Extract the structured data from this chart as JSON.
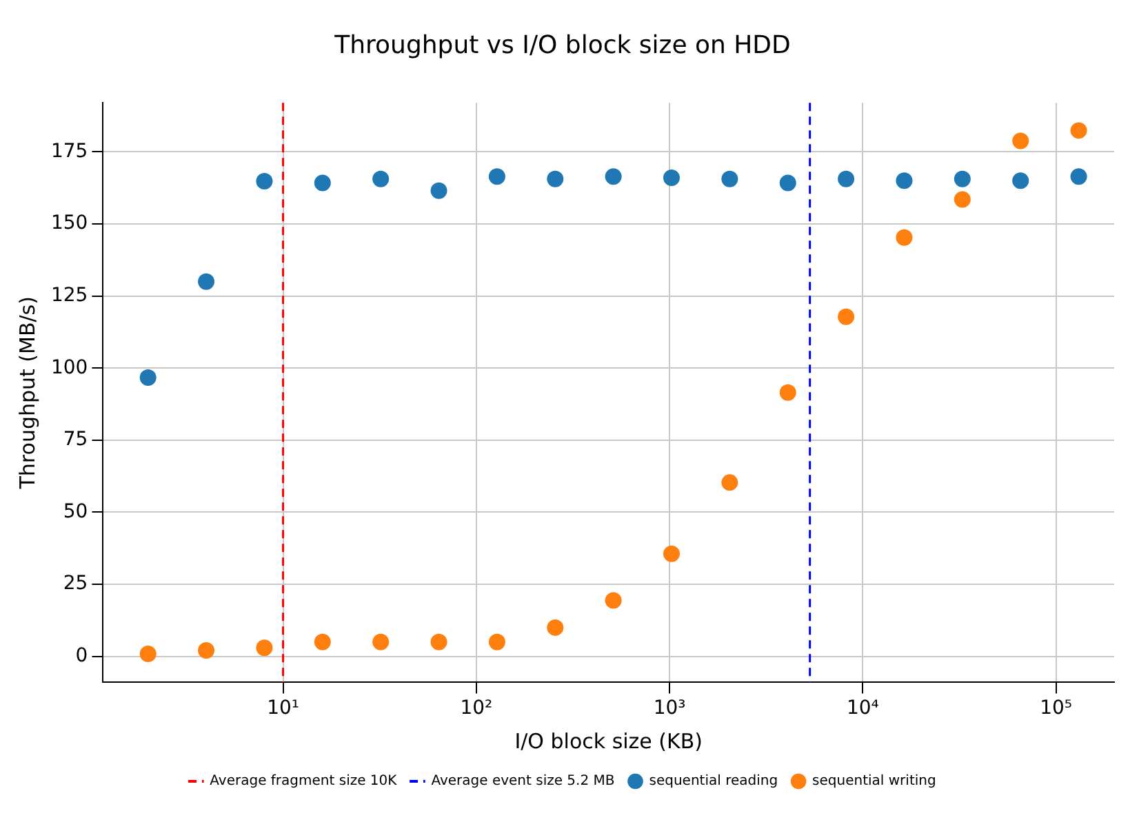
{
  "chart_data": {
    "type": "scatter",
    "title": "Throughput vs I/O block size on HDD",
    "xlabel": "I/O block size (KB)",
    "ylabel": "Throughput (MB/s)",
    "x": [
      2,
      4,
      8,
      16,
      32,
      64,
      128,
      256,
      512,
      1024,
      2048,
      4096,
      8192,
      16384,
      32768,
      65536,
      131072
    ],
    "series": [
      {
        "name": "sequential reading",
        "color": "#1f77b4",
        "values": [
          96.7,
          130,
          164.8,
          164.2,
          165.6,
          161.5,
          166.4,
          165.6,
          166.4,
          166,
          165.6,
          164.2,
          165.6,
          165,
          165.6,
          165,
          166.4
        ]
      },
      {
        "name": "sequential writing",
        "color": "#ff7f0e",
        "values": [
          0.9,
          2.1,
          3,
          5,
          5,
          5,
          5,
          10,
          19.4,
          35.6,
          60.3,
          91.5,
          117.8,
          145.3,
          158.5,
          178.8,
          182.4
        ]
      }
    ],
    "ref_lines": [
      {
        "axis": "x",
        "value": 10,
        "label": "Average fragment size 10K",
        "color": "#ff0000",
        "line_style": "dashed"
      },
      {
        "axis": "x",
        "value": 5325,
        "label": "Average event size 5.2 MB",
        "color": "#0000ff",
        "line_style": "dashed"
      }
    ],
    "log": "x",
    "xlim": [
      1.17,
      200000
    ],
    "xticks": [
      {
        "value": 10,
        "label": "10¹"
      },
      {
        "value": 100,
        "label": "10²"
      },
      {
        "value": 1000,
        "label": "10³"
      },
      {
        "value": 10000,
        "label": "10⁴"
      },
      {
        "value": 100000,
        "label": "10⁵"
      }
    ],
    "ylim": [
      -9,
      192
    ],
    "yticks": [
      0,
      25,
      50,
      75,
      100,
      125,
      150,
      175
    ],
    "grid": true,
    "legend": "bottom",
    "marker": "circle"
  }
}
